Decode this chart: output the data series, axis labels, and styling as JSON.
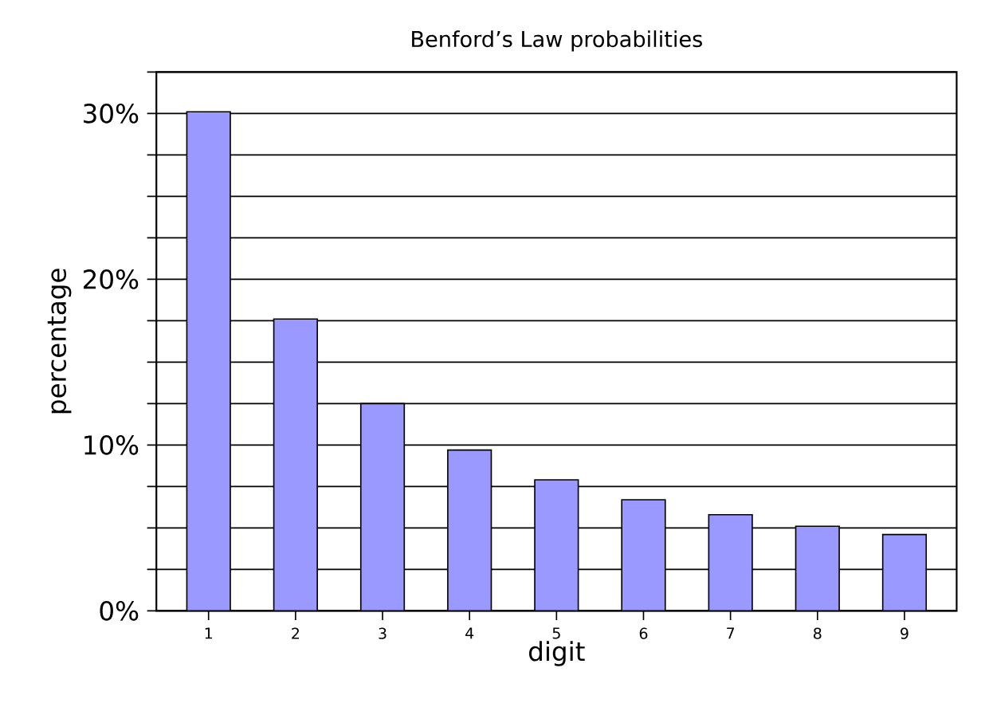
{
  "chart_data": {
    "type": "bar",
    "title": "Benford’s Law probabilities",
    "xlabel": "digit",
    "ylabel": "percentage",
    "categories": [
      "1",
      "2",
      "3",
      "4",
      "5",
      "6",
      "7",
      "8",
      "9"
    ],
    "values": [
      30.1,
      17.6,
      12.5,
      9.7,
      7.9,
      6.7,
      5.8,
      5.1,
      4.6
    ],
    "color": "#9999ff",
    "ylim": [
      0,
      32.5
    ],
    "yticks": [
      {
        "value": 0,
        "label": "0%"
      },
      {
        "value": 2.5,
        "label": null
      },
      {
        "value": 5,
        "label": null
      },
      {
        "value": 7.5,
        "label": null
      },
      {
        "value": 10,
        "label": "10%"
      },
      {
        "value": 12.5,
        "label": null
      },
      {
        "value": 15,
        "label": null
      },
      {
        "value": 17.5,
        "label": null
      },
      {
        "value": 20,
        "label": "20%"
      },
      {
        "value": 22.5,
        "label": null
      },
      {
        "value": 25,
        "label": null
      },
      {
        "value": 27.5,
        "label": null
      },
      {
        "value": 30,
        "label": "30%"
      },
      {
        "value": 32.5,
        "label": null
      }
    ],
    "grid": "y"
  }
}
